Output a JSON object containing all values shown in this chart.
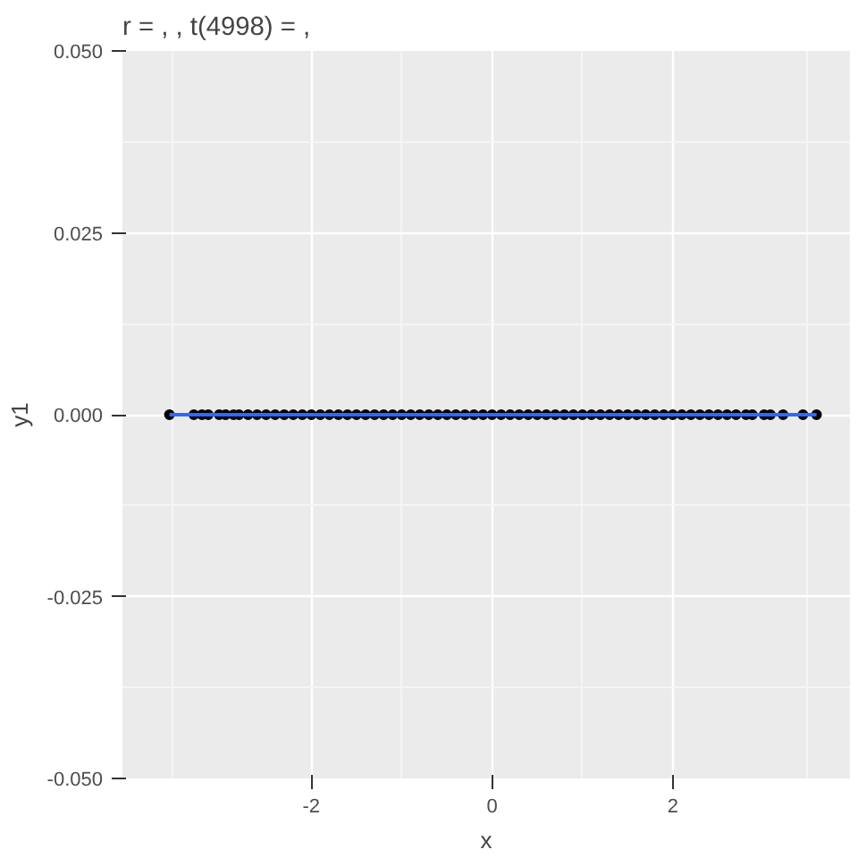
{
  "chart_data": {
    "type": "scatter",
    "title": "r = , , t(4998) = ,",
    "xlabel": "x",
    "ylabel": "y1",
    "xlim": [
      -4.09,
      3.96
    ],
    "xticks": [
      -2,
      0,
      2
    ],
    "ylim": [
      -0.05,
      0.05
    ],
    "yticks": [
      {
        "value": -0.05,
        "label": "-0.050"
      },
      {
        "value": -0.025,
        "label": "-0.025"
      },
      {
        "value": 0,
        "label": "0.000"
      },
      {
        "value": 0.025,
        "label": "0.025"
      },
      {
        "value": 0.05,
        "label": "0.050"
      }
    ],
    "grid": true,
    "series": [
      {
        "type": "line",
        "marker": "none",
        "color": "#3366ff",
        "x": [
          -3.57,
          3.59
        ],
        "values": [
          0,
          0
        ]
      },
      {
        "marker": "circle",
        "color": "#000000",
        "x": [
          -3.57,
          -3.3,
          -3.21,
          -3.14,
          -3.02,
          -2.95,
          -2.86,
          -2.8,
          -2.7,
          -2.6,
          -2.5,
          -2.4,
          -2.3,
          -2.2,
          -2.1,
          -2.0,
          -1.9,
          -1.8,
          -1.7,
          -1.6,
          -1.5,
          -1.4,
          -1.3,
          -1.2,
          -1.1,
          -1.0,
          -0.9,
          -0.8,
          -0.7,
          -0.6,
          -0.5,
          -0.4,
          -0.3,
          -0.2,
          -0.1,
          0.0,
          0.1,
          0.2,
          0.3,
          0.4,
          0.5,
          0.6,
          0.7,
          0.8,
          0.9,
          1.0,
          1.1,
          1.2,
          1.3,
          1.4,
          1.5,
          1.6,
          1.7,
          1.8,
          1.9,
          2.0,
          2.1,
          2.2,
          2.3,
          2.4,
          2.5,
          2.6,
          2.7,
          2.81,
          2.88,
          3.01,
          3.08,
          3.22,
          3.44,
          3.59
        ],
        "values": [
          0,
          0,
          0,
          0,
          0,
          0,
          0,
          0,
          0,
          0,
          0,
          0,
          0,
          0,
          0,
          0,
          0,
          0,
          0,
          0,
          0,
          0,
          0,
          0,
          0,
          0,
          0,
          0,
          0,
          0,
          0,
          0,
          0,
          0,
          0,
          0,
          0,
          0,
          0,
          0,
          0,
          0,
          0,
          0,
          0,
          0,
          0,
          0,
          0,
          0,
          0,
          0,
          0,
          0,
          0,
          0,
          0,
          0,
          0,
          0,
          0,
          0,
          0,
          0,
          0,
          0,
          0,
          0,
          0,
          0
        ]
      }
    ]
  }
}
